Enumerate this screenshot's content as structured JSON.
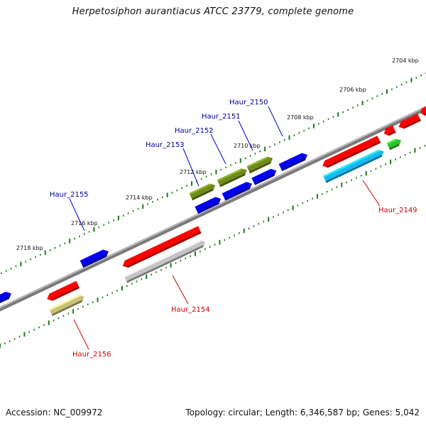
{
  "title": "Herpetosiphon aurantiacus ATCC 23779, complete genome",
  "footer": {
    "accession": "Accession: NC_009972",
    "summary": "Topology: circular; Length: 6,346,587 bp; Genes: 5,042"
  },
  "colors": {
    "backbone": "#8a8a8a",
    "forward_cds": "#ff0000",
    "reverse_cds": "#0000ee",
    "olive_cds": "#6f8a1c",
    "khaki_cds": "#c9c07a",
    "gray_cds": "#c4c4c4",
    "cyan_cds": "#18b8f0",
    "green_cds": "#30c030",
    "label_reverse": "#000099",
    "label_forward": "#cc0000",
    "tick": "#1a7a1a"
  },
  "kbp_labels": [
    "2704 kbp",
    "2706 kbp",
    "2708 kbp",
    "2710 kbp",
    "2712 kbp",
    "2714 kbp",
    "2716 kbp",
    "2718 kbp"
  ],
  "gene_labels": {
    "top": [
      "Haur_2150",
      "Haur_2151",
      "Haur_2152",
      "Haur_2153",
      "Haur_2155"
    ],
    "bottom": [
      "Haur_2149",
      "Haur_2154",
      "Haur_2156"
    ]
  }
}
